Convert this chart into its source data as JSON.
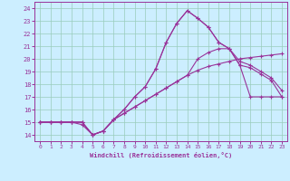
{
  "xlabel": "Windchill (Refroidissement éolien,°C)",
  "bg_color": "#cceeff",
  "line_color": "#993399",
  "grid_color": "#99ccbb",
  "xlim": [
    -0.5,
    23.5
  ],
  "ylim": [
    13.5,
    24.5
  ],
  "xticks": [
    0,
    1,
    2,
    3,
    4,
    5,
    6,
    7,
    8,
    9,
    10,
    11,
    12,
    13,
    14,
    15,
    16,
    17,
    18,
    19,
    20,
    21,
    22,
    23
  ],
  "yticks": [
    14,
    15,
    16,
    17,
    18,
    19,
    20,
    21,
    22,
    23,
    24
  ],
  "line1_x": [
    0,
    1,
    2,
    3,
    4,
    5,
    6,
    7,
    8,
    9,
    10,
    11,
    12,
    13,
    14,
    15,
    16,
    17,
    18,
    19,
    20,
    21,
    22,
    23
  ],
  "line1_y": [
    15.0,
    15.0,
    15.0,
    15.0,
    15.0,
    14.0,
    14.3,
    15.2,
    15.7,
    16.2,
    16.7,
    17.2,
    17.7,
    18.2,
    18.7,
    19.1,
    19.4,
    19.6,
    19.8,
    20.0,
    20.1,
    20.2,
    20.3,
    20.4
  ],
  "line2_x": [
    0,
    1,
    2,
    3,
    4,
    5,
    6,
    7,
    8,
    9,
    10,
    11,
    12,
    13,
    14,
    15,
    16,
    17,
    18,
    19,
    20,
    21,
    22,
    23
  ],
  "line2_y": [
    15.0,
    15.0,
    15.0,
    15.0,
    15.0,
    14.0,
    14.3,
    15.2,
    16.0,
    17.0,
    17.8,
    19.2,
    21.3,
    22.8,
    23.8,
    23.2,
    22.5,
    21.3,
    20.8,
    19.5,
    17.0,
    17.0,
    17.0,
    17.0
  ],
  "line3_x": [
    0,
    1,
    2,
    3,
    4,
    5,
    6,
    7,
    8,
    9,
    10,
    11,
    12,
    13,
    14,
    15,
    16,
    17,
    18,
    19,
    20,
    21,
    22,
    23
  ],
  "line3_y": [
    15.0,
    15.0,
    15.0,
    15.0,
    15.0,
    14.0,
    14.3,
    15.2,
    16.0,
    17.0,
    17.8,
    19.2,
    21.3,
    22.8,
    23.8,
    23.2,
    22.5,
    21.3,
    20.8,
    19.5,
    19.3,
    18.8,
    18.3,
    17.0
  ],
  "line4_x": [
    0,
    1,
    2,
    3,
    4,
    5,
    6,
    7,
    8,
    9,
    10,
    11,
    12,
    13,
    14,
    15,
    16,
    17,
    18,
    19,
    20,
    21,
    22,
    23
  ],
  "line4_y": [
    15.0,
    15.0,
    15.0,
    15.0,
    14.8,
    14.0,
    14.3,
    15.2,
    15.7,
    16.2,
    16.7,
    17.2,
    17.7,
    18.2,
    18.7,
    20.0,
    20.5,
    20.8,
    20.8,
    19.8,
    19.5,
    19.0,
    18.5,
    17.5
  ]
}
